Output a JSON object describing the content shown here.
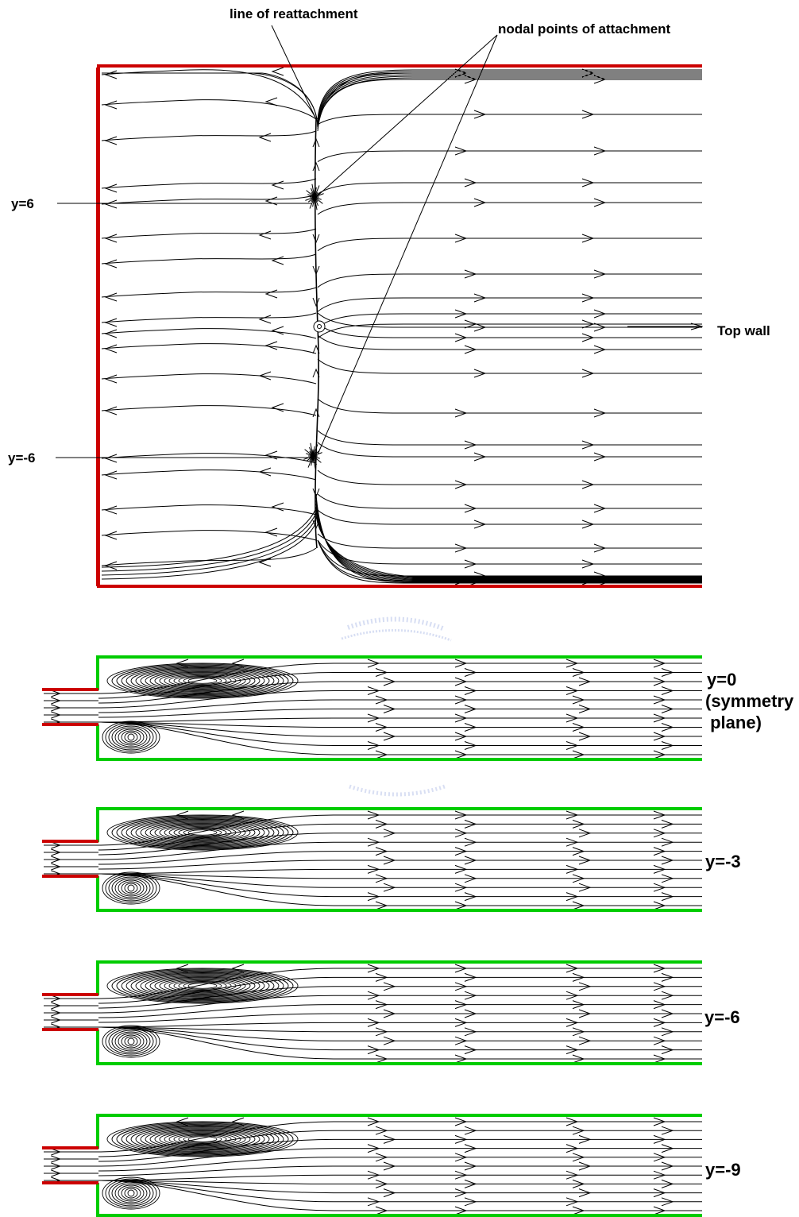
{
  "top_panel": {
    "annotations": {
      "reattachment_line": "line of reattachment",
      "nodal_points": "nodal points of attachment",
      "top_wall": "Top wall",
      "y_pos6": "y=6",
      "y_neg6": "y=-6"
    },
    "colors": {
      "wall": "#cc0000",
      "streamline": "#000000"
    }
  },
  "planes": [
    {
      "label_lines": [
        "y=0",
        "(symmetry",
        " plane)"
      ]
    },
    {
      "label_lines": [
        "y=-3"
      ]
    },
    {
      "label_lines": [
        "y=-6"
      ]
    },
    {
      "label_lines": [
        "y=-9"
      ]
    }
  ],
  "plane_colors": {
    "channel_wall": "#00cc00",
    "inlet_wall": "#cc0000"
  }
}
